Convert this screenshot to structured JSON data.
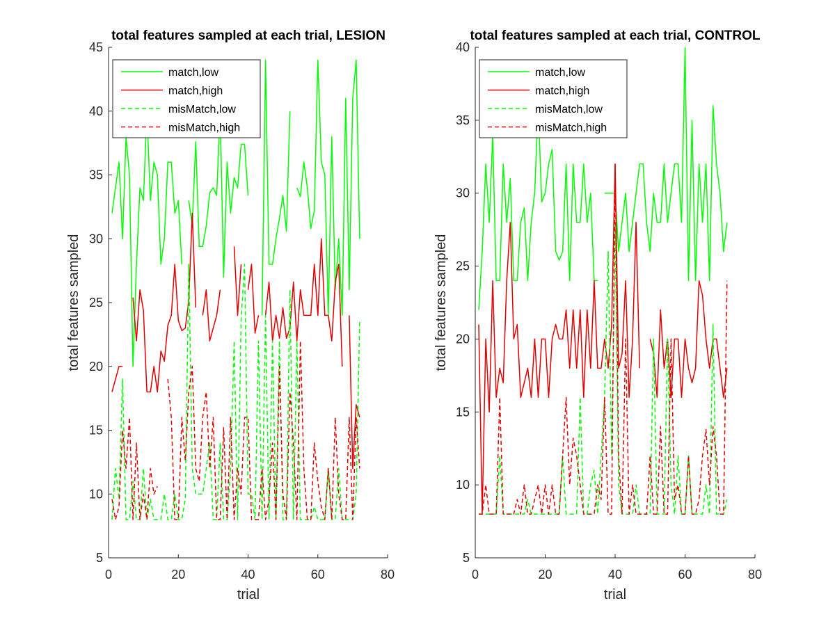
{
  "colors": {
    "green": "#00ff00",
    "red": "#e00000",
    "axis": "#262626"
  },
  "chart_data": [
    {
      "type": "line",
      "title": "total features sampled at each trial, LESION",
      "xlabel": "trial",
      "ylabel": "total features sampled",
      "xlim": [
        0,
        80
      ],
      "ylim": [
        5,
        45
      ],
      "xticks": [
        "0",
        "20",
        "40",
        "60",
        "80"
      ],
      "yticks": [
        "5",
        "10",
        "15",
        "20",
        "25",
        "30",
        "35",
        "40",
        "45"
      ],
      "legend": {
        "position": "top-left"
      },
      "series": [
        {
          "name": "match,low",
          "color": "#00ff00",
          "dash": false,
          "values": [
            32,
            34,
            36,
            30,
            38,
            35,
            20,
            28,
            34,
            33,
            40,
            33,
            36,
            35,
            28,
            30,
            36,
            36,
            32,
            33,
            28,
            null,
            33,
            31,
            37.6,
            29.4,
            29.4,
            31,
            33.6,
            34,
            33.4,
            40,
            27,
            36,
            32,
            34.8,
            34,
            37.4,
            37.4,
            33.4,
            null,
            null,
            null,
            24,
            44,
            28,
            28,
            30,
            31.6,
            33.4,
            30.6,
            40,
            null,
            34,
            33.3,
            36,
            34,
            30.8,
            32.2,
            44,
            36,
            35,
            24,
            38,
            26,
            30,
            24,
            41,
            26,
            41,
            44,
            30
          ]
        },
        {
          "name": "match,high",
          "color": "#e00000",
          "dash": false,
          "values": [
            18,
            19,
            20,
            20,
            null,
            null,
            25.4,
            22,
            26,
            24.4,
            18,
            18,
            20,
            18,
            21.2,
            20.4,
            23.2,
            24,
            28,
            23.6,
            22.8,
            23,
            25.2,
            32,
            24.6,
            null,
            24,
            26,
            22,
            23,
            24,
            26,
            null,
            null,
            null,
            29.4,
            24,
            28,
            null,
            26,
            28,
            22.6,
            24,
            null,
            24,
            26.6,
            22,
            24,
            22.2,
            24.6,
            22.2,
            23,
            26.6,
            22,
            26,
            24,
            24,
            24,
            28,
            24,
            30,
            24,
            24,
            22,
            26.6,
            28,
            20,
            null,
            24,
            12,
            17,
            16
          ]
        },
        {
          "name": "misMatch,low",
          "color": "#00ff00",
          "dash": true,
          "values": [
            8,
            12,
            9.6,
            19,
            8,
            8,
            11,
            8,
            8,
            12,
            8,
            9.6,
            8,
            8,
            8,
            10,
            8,
            8,
            10,
            8,
            8,
            9.6,
            28,
            12,
            10,
            10,
            10,
            12,
            14,
            8,
            8,
            14,
            8,
            8,
            12,
            22,
            8,
            23.6,
            28,
            10,
            10,
            8,
            22,
            8,
            24,
            8,
            22,
            8,
            22,
            8,
            8,
            26,
            8,
            22,
            8,
            8,
            8,
            8,
            9,
            8,
            8,
            8,
            12,
            8,
            8,
            12,
            8,
            8,
            8,
            8,
            10,
            23.6
          ]
        },
        {
          "name": "misMatch,high",
          "color": "#e00000",
          "dash": true,
          "values": [
            9.6,
            8,
            9,
            15,
            12,
            16,
            8,
            14,
            8,
            10,
            8,
            12,
            10,
            10.6,
            null,
            null,
            19,
            16,
            8,
            8,
            16,
            12.6,
            18,
            20,
            12,
            11,
            16,
            18,
            12,
            16,
            8,
            8,
            15.2,
            8,
            16,
            8,
            12,
            10,
            16,
            16,
            8,
            8,
            8,
            12,
            8,
            9.6,
            14,
            8,
            20,
            10,
            8,
            18,
            14,
            8,
            22,
            12,
            8,
            8,
            14,
            11,
            9,
            8,
            12,
            8,
            16,
            10,
            8,
            8,
            16,
            8,
            16,
            12
          ]
        }
      ]
    },
    {
      "type": "line",
      "title": "total features sampled at each trial, CONTROL",
      "xlabel": "trial",
      "ylabel": "total features sampled",
      "xlim": [
        0,
        80
      ],
      "ylim": [
        5,
        40
      ],
      "xticks": [
        "0",
        "20",
        "40",
        "60",
        "80"
      ],
      "yticks": [
        "5",
        "10",
        "15",
        "20",
        "25",
        "30",
        "35",
        "40"
      ],
      "legend": {
        "position": "top-left"
      },
      "series": [
        {
          "name": "match,low",
          "color": "#00ff00",
          "dash": false,
          "values": [
            22,
            26,
            32,
            28,
            34,
            24,
            24,
            32,
            28,
            31,
            24,
            24,
            28,
            29,
            24,
            28,
            30,
            36,
            29.4,
            30,
            32,
            33,
            26,
            25.4,
            26,
            32,
            24,
            32,
            28,
            28,
            32,
            28,
            30,
            24,
            24,
            null,
            30,
            30,
            30,
            30,
            26,
            28,
            30,
            26,
            28,
            30,
            32,
            32,
            28,
            26,
            30,
            28,
            28,
            32,
            28,
            30,
            32,
            32,
            28,
            40,
            24,
            35,
            24,
            32,
            28,
            32,
            24,
            36,
            32,
            30,
            26,
            28
          ]
        },
        {
          "name": "match,high",
          "color": "#e00000",
          "dash": false,
          "values": [
            21,
            8,
            20,
            15,
            24,
            16,
            18,
            17,
            24,
            28,
            20,
            21,
            16,
            17,
            18,
            16,
            20,
            16,
            20,
            20,
            16,
            20,
            21,
            20,
            20,
            22,
            18,
            22,
            18,
            22,
            16,
            22,
            18,
            24,
            18,
            18,
            20,
            18,
            21,
            32,
            18,
            19,
            24,
            16,
            20,
            28,
            18,
            null,
            null,
            20,
            19,
            16,
            22,
            18,
            20,
            16,
            20,
            20,
            16,
            20,
            18,
            17,
            18,
            24,
            23,
            20,
            18,
            20,
            20,
            18,
            16,
            18
          ]
        },
        {
          "name": "misMatch,low",
          "color": "#00ff00",
          "dash": true,
          "values": [
            8,
            8,
            8,
            8,
            8,
            8,
            12,
            8,
            8,
            8,
            8,
            8,
            8,
            8,
            9,
            8,
            8,
            8,
            8,
            8,
            8,
            8,
            8,
            8,
            12,
            8,
            8,
            8,
            8,
            16,
            8,
            8,
            10,
            11,
            8,
            12,
            16,
            26,
            12,
            28,
            10,
            8,
            8,
            8,
            8,
            10,
            8,
            8,
            8,
            8,
            20,
            8,
            8,
            8,
            20,
            10,
            8,
            12,
            8,
            8,
            12,
            8,
            8,
            8,
            8,
            10,
            8,
            21,
            8,
            8,
            8,
            9
          ]
        },
        {
          "name": "misMatch,high",
          "color": "#e00000",
          "dash": true,
          "values": [
            8,
            8,
            10,
            8,
            8,
            8,
            16,
            8,
            8,
            8,
            8,
            9,
            8,
            10,
            8,
            8,
            9,
            10,
            8,
            10,
            8,
            10,
            8,
            8,
            12,
            16,
            10,
            13.2,
            12,
            10,
            8,
            8,
            8,
            8,
            10,
            9,
            16,
            8,
            8,
            32,
            12,
            8,
            20,
            8,
            10,
            8,
            8,
            8,
            8,
            12,
            8,
            8,
            14,
            8,
            8,
            20,
            9,
            10,
            8,
            8,
            12,
            8,
            8,
            9,
            12,
            13.8,
            10,
            14,
            12,
            8,
            8,
            24
          ]
        }
      ]
    }
  ]
}
